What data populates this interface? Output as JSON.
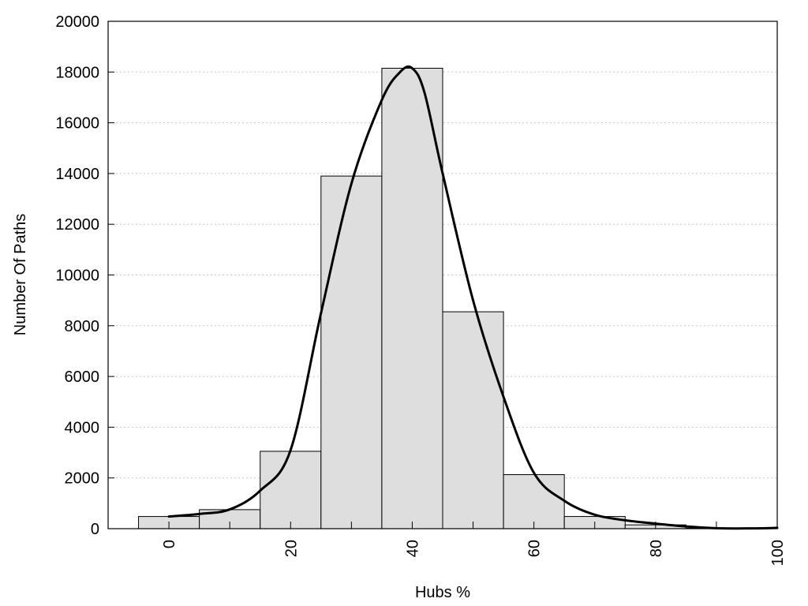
{
  "chart_data": {
    "type": "bar",
    "xlabel": "Hubs %",
    "ylabel": "Number Of Paths",
    "xlim": [
      -10,
      100
    ],
    "ylim": [
      0,
      20000
    ],
    "bin_width": 10,
    "x": [
      0,
      10,
      20,
      30,
      40,
      50,
      60,
      70,
      80,
      90
    ],
    "values": [
      480,
      750,
      3050,
      13900,
      18150,
      8550,
      2130,
      480,
      150,
      20
    ],
    "density_curve": {
      "x": [
        0,
        5,
        10,
        15,
        20,
        25,
        30,
        35,
        38,
        40,
        42,
        45,
        50,
        55,
        60,
        65,
        70,
        75,
        80,
        85,
        90,
        95,
        100
      ],
      "y": [
        480,
        580,
        760,
        1500,
        3100,
        8500,
        13600,
        16900,
        18000,
        18150,
        17200,
        14000,
        9000,
        5200,
        2200,
        1100,
        550,
        330,
        200,
        90,
        20,
        10,
        30
      ]
    },
    "y_ticks": [
      0,
      2000,
      4000,
      6000,
      8000,
      10000,
      12000,
      14000,
      16000,
      18000,
      20000
    ],
    "x_ticks": [
      0,
      20,
      40,
      60,
      80,
      100
    ],
    "x_minor_ticks": [
      10,
      30,
      50,
      70,
      90
    ],
    "grid": "horizontal-dotted",
    "bar_color": "#dedede",
    "line_color": "#000000"
  }
}
